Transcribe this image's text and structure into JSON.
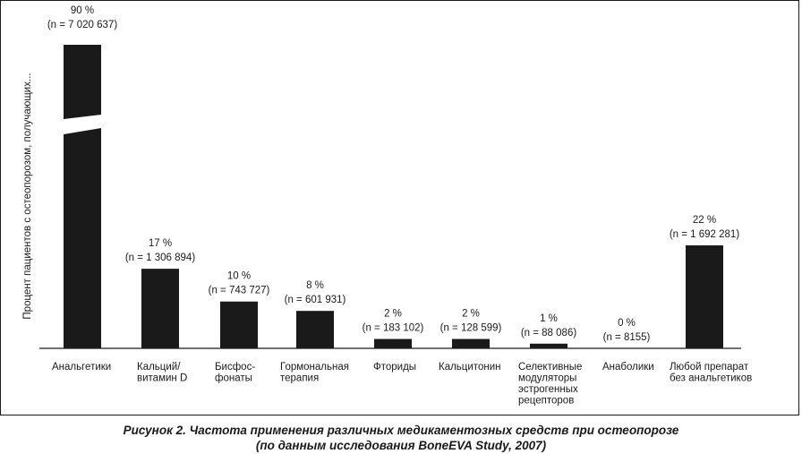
{
  "chart_data": {
    "type": "bar",
    "ylabel": "Процент пациентов с остеопорозом, получающих...",
    "ylim": [
      0,
      90
    ],
    "axis_break": true,
    "categories": [
      [
        "Анальгетики"
      ],
      [
        "Кальций/",
        "витамин D"
      ],
      [
        "Бисфос-",
        "фонаты"
      ],
      [
        "Гормональная",
        "терапия"
      ],
      [
        "Фториды"
      ],
      [
        "Кальцитонин"
      ],
      [
        "Селективные",
        "модуляторы",
        "эстрогенных",
        "рецепторов"
      ],
      [
        "Анаболики"
      ],
      [
        "Любой препарат",
        "без анальгетиков"
      ]
    ],
    "values": [
      90,
      17,
      10,
      8,
      2,
      2,
      1,
      0,
      22
    ],
    "percent_labels": [
      "90 %",
      "17 %",
      "10 %",
      "8 %",
      "2 %",
      "2 %",
      "1 %",
      "0 %",
      "22 %"
    ],
    "n_labels": [
      "(n = 7 020 637)",
      "(n = 1 306 894)",
      "(n = 743 727)",
      "(n = 601 931)",
      "(n = 183 102)",
      "(n = 128 599)",
      "(n = 88 086)",
      "(n = 8155)",
      "(n = 1 692 281)"
    ],
    "bar_color": "#1a1a1a",
    "grid": false,
    "legend": "none"
  },
  "caption": {
    "line1": "Рисунок 2.  Частота применения различных медикаментозных средств при остеопорозе",
    "line2": "(по данным исследования BoneEVA Study, 2007)"
  }
}
